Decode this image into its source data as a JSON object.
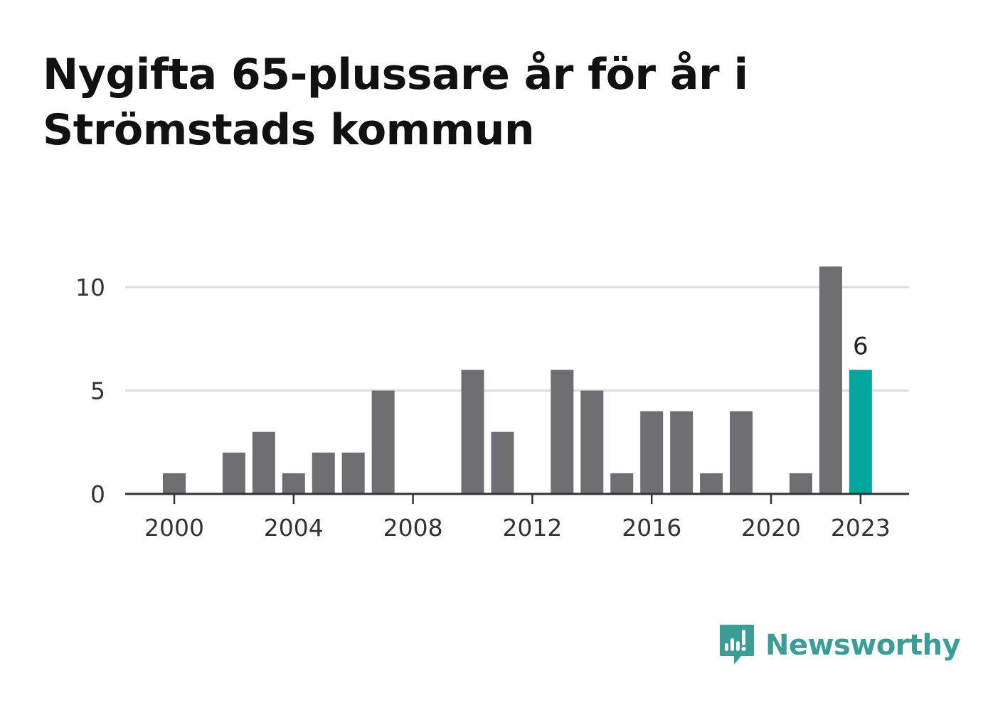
{
  "title": "Nygifta 65-plussare år för år i Strömstads kommun",
  "brand": {
    "name": "Newsworthy",
    "color": "#3a9e97",
    "icon": "newsworthy-logo-icon"
  },
  "colors": {
    "bar": "#6e6d72",
    "highlight": "#00a69c",
    "grid": "#dddddd",
    "axis": "#333333"
  },
  "chart_data": {
    "type": "bar",
    "x": [
      2000,
      2001,
      2002,
      2003,
      2004,
      2005,
      2006,
      2007,
      2008,
      2009,
      2010,
      2011,
      2012,
      2013,
      2014,
      2015,
      2016,
      2017,
      2018,
      2019,
      2020,
      2021,
      2022,
      2023
    ],
    "values": [
      1,
      0,
      2,
      3,
      1,
      2,
      2,
      5,
      0,
      0,
      6,
      3,
      0,
      6,
      5,
      1,
      4,
      4,
      1,
      4,
      0,
      1,
      11,
      6
    ],
    "highlight": {
      "x": 2023,
      "label": "6"
    },
    "x_ticks": [
      "2000",
      "2004",
      "2008",
      "2012",
      "2016",
      "2020",
      "2023"
    ],
    "y_ticks": [
      "0",
      "5",
      "10"
    ],
    "ylim": [
      0,
      11
    ],
    "grid": true,
    "xlabel": "",
    "ylabel": ""
  }
}
